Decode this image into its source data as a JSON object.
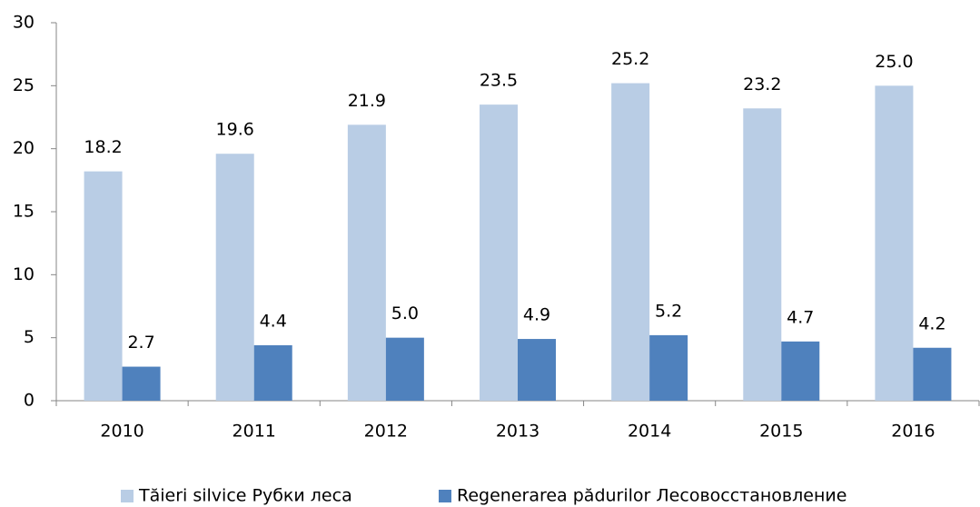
{
  "chart_data": {
    "type": "bar",
    "categories": [
      "2010",
      "2011",
      "2012",
      "2013",
      "2014",
      "2015",
      "2016"
    ],
    "series": [
      {
        "name": "Tăieri silvice Рубки леса",
        "color": "#b9cde5",
        "values": [
          18.2,
          19.6,
          21.9,
          23.5,
          25.2,
          23.2,
          25.0
        ],
        "value_labels": [
          "18.2",
          "19.6",
          "21.9",
          "23.5",
          "25.2",
          "23.2",
          "25.0"
        ]
      },
      {
        "name": "Regenerarea pădurilor Лесовосстановление",
        "color": "#4f81bd",
        "values": [
          2.7,
          4.4,
          5.0,
          4.9,
          5.2,
          4.7,
          4.2
        ],
        "value_labels": [
          "2.7",
          "4.4",
          "5.0",
          "4.9",
          "5.2",
          "4.7",
          "4.2"
        ]
      }
    ],
    "ylim": [
      0,
      30
    ],
    "yticks": [
      0,
      5,
      10,
      15,
      20,
      25,
      30
    ],
    "grid": false,
    "legend": "bottom"
  }
}
